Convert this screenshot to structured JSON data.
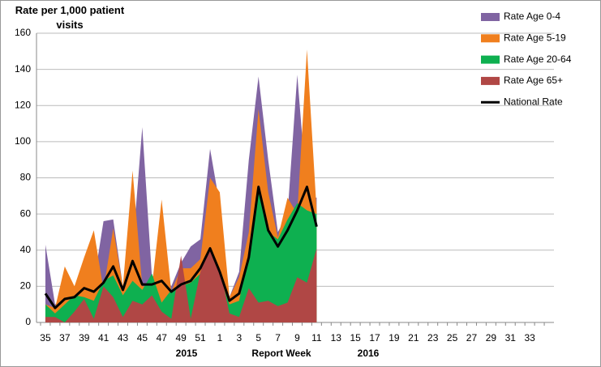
{
  "chart_data": {
    "type": "area",
    "y_title": "Rate per 1,000 patient visits",
    "x_title": "Report Week",
    "year_labels": [
      "2015",
      "2016"
    ],
    "categories": [
      "35",
      null,
      "37",
      null,
      "39",
      null,
      "41",
      null,
      "43",
      null,
      "45",
      null,
      "47",
      null,
      "49",
      null,
      "51",
      null,
      "1",
      null,
      "3",
      null,
      "5",
      null,
      "7",
      null,
      "9",
      null,
      "11",
      null,
      "13",
      null,
      "15",
      null,
      "17",
      null,
      "19",
      null,
      "21",
      null,
      "23",
      null,
      "25",
      null,
      "27",
      null,
      "29",
      null,
      "31",
      null,
      "33",
      null,
      null
    ],
    "series": [
      {
        "name": "Rate Age 0-4",
        "color": "#8064a2",
        "values": [
          43,
          10,
          14,
          18,
          20,
          22,
          56,
          57,
          20,
          40,
          108,
          25,
          30,
          20,
          33,
          42,
          46,
          96,
          65,
          14,
          28,
          90,
          136,
          90,
          50,
          60,
          137,
          70,
          69,
          null,
          null,
          null,
          null,
          null,
          null,
          null,
          null,
          null,
          null,
          null,
          null,
          null,
          null,
          null,
          null,
          null,
          null,
          null,
          null,
          null,
          null,
          null,
          null
        ]
      },
      {
        "name": "Rate Age 5-19",
        "color": "#f07f1e",
        "values": [
          10,
          8,
          31,
          20,
          36,
          51,
          18,
          52,
          20,
          84,
          20,
          20,
          68,
          17,
          30,
          30,
          35,
          80,
          72,
          14,
          25,
          50,
          118,
          72,
          47,
          69,
          60,
          151,
          62,
          null,
          null,
          null,
          null,
          null,
          null,
          null,
          null,
          null,
          null,
          null,
          null,
          null,
          null,
          null,
          null,
          null,
          null,
          null,
          null,
          null,
          null,
          null,
          null
        ]
      },
      {
        "name": "Rate Age 20-64",
        "color": "#0eb050",
        "values": [
          10,
          5,
          10,
          15,
          14,
          12,
          23,
          26,
          15,
          23,
          18,
          27,
          11,
          18,
          20,
          22,
          27,
          40,
          25,
          10,
          12,
          38,
          73,
          50,
          46,
          57,
          66,
          62,
          60,
          null,
          null,
          null,
          null,
          null,
          null,
          null,
          null,
          null,
          null,
          null,
          null,
          null,
          null,
          null,
          null,
          null,
          null,
          null,
          null,
          null,
          null,
          null,
          null
        ]
      },
      {
        "name": "Rate Age 65+",
        "color": "#b04745",
        "values": [
          3,
          3,
          0,
          6,
          13,
          2,
          20,
          14,
          3,
          12,
          10,
          15,
          6,
          2,
          37,
          2,
          28,
          42,
          30,
          5,
          3,
          19,
          11,
          12,
          9,
          11,
          25,
          22,
          41,
          null,
          null,
          null,
          null,
          null,
          null,
          null,
          null,
          null,
          null,
          null,
          null,
          null,
          null,
          null,
          null,
          null,
          null,
          null,
          null,
          null,
          null,
          null,
          null
        ]
      },
      {
        "name": "National Rate",
        "color": "#000000",
        "line": true,
        "values": [
          16,
          8,
          13,
          14,
          19,
          17,
          22,
          31,
          18,
          34,
          21,
          21,
          23,
          17,
          21,
          23,
          30,
          41,
          28,
          12,
          16,
          36,
          75,
          51,
          42,
          51,
          62,
          75,
          53,
          null,
          null,
          null,
          null,
          null,
          null,
          null,
          null,
          null,
          null,
          null,
          null,
          null,
          null,
          null,
          null,
          null,
          null,
          null,
          null,
          null,
          null,
          null,
          null
        ]
      }
    ],
    "ylim": [
      0,
      160
    ],
    "yticks": [
      0,
      20,
      40,
      60,
      80,
      100,
      120,
      140,
      160
    ],
    "grid": true
  }
}
